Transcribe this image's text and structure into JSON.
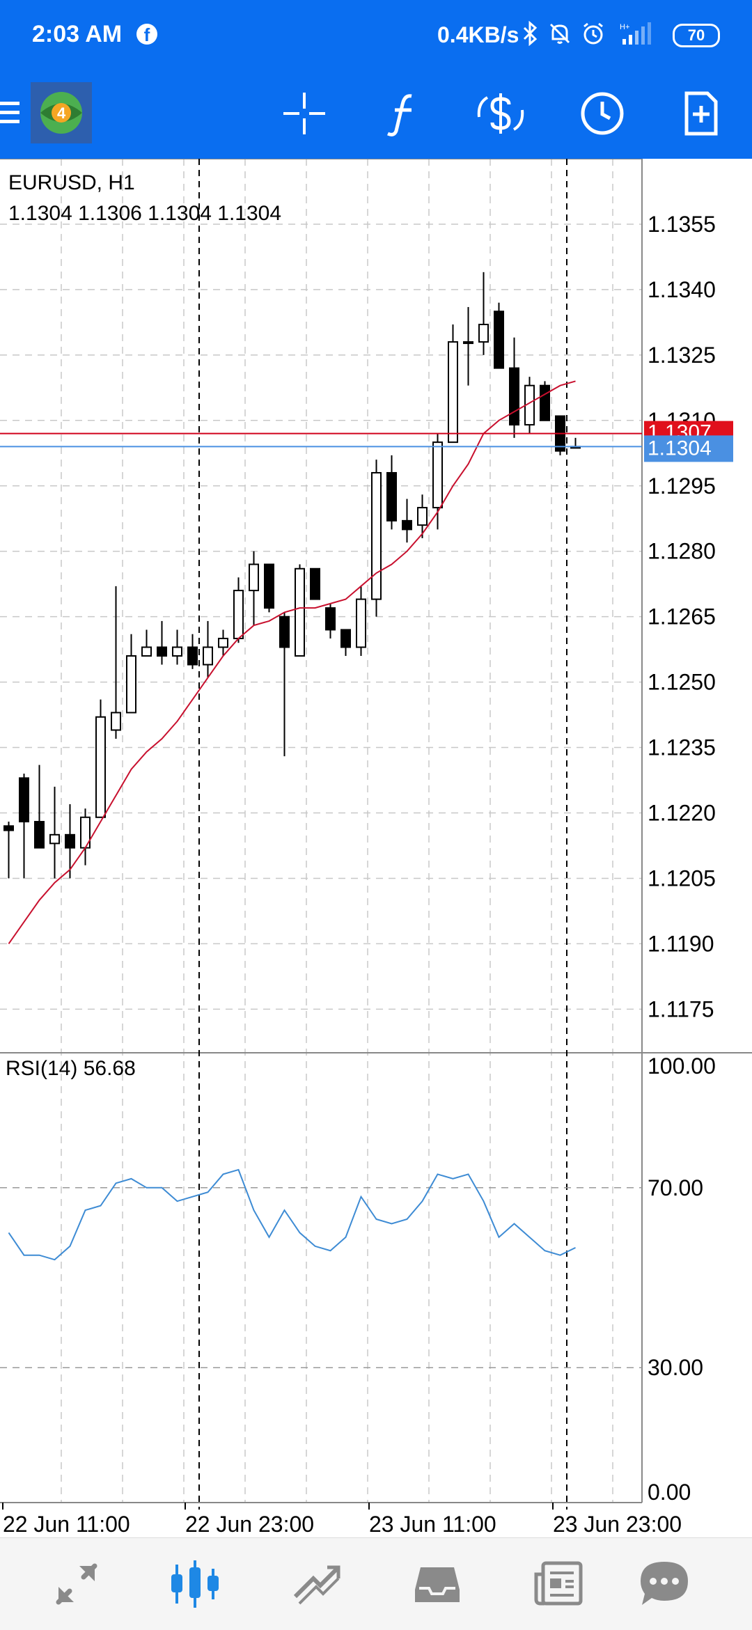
{
  "status_bar": {
    "time": "2:03 AM",
    "facebook_glyph": "f",
    "network_speed": "0.4KB/s",
    "battery": "70",
    "icons": [
      "facebook-icon",
      "bluetooth-icon",
      "muted-bell-icon",
      "alarm-icon",
      "signal-icon",
      "battery-icon"
    ]
  },
  "toolbar": {
    "icons": [
      "menu-icon",
      "mt4-logo",
      "crosshair-icon",
      "indicators-icon",
      "trade-icon",
      "timeframe-icon",
      "templates-icon"
    ],
    "colors": {
      "background": "#0a6ef0",
      "icon": "#ffffff"
    }
  },
  "chart": {
    "symbol_label": "EURUSD, H1",
    "ohlc_label": "1.1304 1.1306 1.1304 1.1304",
    "price_labels": [
      "1.1355",
      "1.1340",
      "1.1325",
      "1.1310",
      "1.1295",
      "1.1280",
      "1.1265",
      "1.1250",
      "1.1235",
      "1.1220",
      "1.1205",
      "1.1190",
      "1.1175"
    ],
    "bid_label": "1.1304",
    "ask_label": "1.1307",
    "bid_value": 1.1304,
    "ask_value": 1.1307,
    "time_labels": [
      "22 Jun 11:00",
      "22 Jun 23:00",
      "23 Jun 11:00",
      "23 Jun 23:00"
    ],
    "colors": {
      "ask_line": "#d0021b",
      "bid_line": "#4a90e2",
      "ma_line": "#c8102e",
      "rsi_line": "#3d8bd4",
      "grid": "#c8c8c8"
    }
  },
  "rsi": {
    "label": "RSI(14) 56.68",
    "levels": [
      "100.00",
      "70.00",
      "30.00",
      "0.00"
    ]
  },
  "bottom_nav": {
    "items": [
      "quotes-icon",
      "chart-icon",
      "trade-icon",
      "history-icon",
      "news-icon",
      "chat-icon"
    ],
    "active": "chart-icon"
  },
  "chart_data": {
    "type": "candlestick",
    "ylim": [
      1.1165,
      1.137
    ],
    "candles": [
      {
        "o": 1.1217,
        "h": 1.1218,
        "l": 1.1205,
        "c": 1.1216
      },
      {
        "o": 1.1228,
        "h": 1.1229,
        "l": 1.1205,
        "c": 1.1218
      },
      {
        "o": 1.1218,
        "h": 1.1231,
        "l": 1.1214,
        "c": 1.1212
      },
      {
        "o": 1.1213,
        "h": 1.1226,
        "l": 1.1205,
        "c": 1.1215
      },
      {
        "o": 1.1215,
        "h": 1.1222,
        "l": 1.1205,
        "c": 1.1212
      },
      {
        "o": 1.1212,
        "h": 1.1221,
        "l": 1.1208,
        "c": 1.1219
      },
      {
        "o": 1.1219,
        "h": 1.1246,
        "l": 1.1219,
        "c": 1.1242
      },
      {
        "o": 1.1239,
        "h": 1.1272,
        "l": 1.1237,
        "c": 1.1243
      },
      {
        "o": 1.1243,
        "h": 1.1261,
        "l": 1.1243,
        "c": 1.1256
      },
      {
        "o": 1.1256,
        "h": 1.1262,
        "l": 1.1256,
        "c": 1.1258
      },
      {
        "o": 1.1258,
        "h": 1.1264,
        "l": 1.1254,
        "c": 1.1256
      },
      {
        "o": 1.1256,
        "h": 1.1262,
        "l": 1.1254,
        "c": 1.1258
      },
      {
        "o": 1.1258,
        "h": 1.1261,
        "l": 1.1253,
        "c": 1.1254
      },
      {
        "o": 1.1254,
        "h": 1.1264,
        "l": 1.1251,
        "c": 1.1258
      },
      {
        "o": 1.1258,
        "h": 1.1262,
        "l": 1.1256,
        "c": 1.126
      },
      {
        "o": 1.126,
        "h": 1.1274,
        "l": 1.1259,
        "c": 1.1271
      },
      {
        "o": 1.1271,
        "h": 1.128,
        "l": 1.1263,
        "c": 1.1277
      },
      {
        "o": 1.1277,
        "h": 1.1277,
        "l": 1.1266,
        "c": 1.1267
      },
      {
        "o": 1.1265,
        "h": 1.1266,
        "l": 1.1233,
        "c": 1.1258
      },
      {
        "o": 1.1256,
        "h": 1.1277,
        "l": 1.1256,
        "c": 1.1276
      },
      {
        "o": 1.1276,
        "h": 1.1276,
        "l": 1.1269,
        "c": 1.1269
      },
      {
        "o": 1.1267,
        "h": 1.1268,
        "l": 1.126,
        "c": 1.1262
      },
      {
        "o": 1.1262,
        "h": 1.1262,
        "l": 1.1256,
        "c": 1.1258
      },
      {
        "o": 1.1258,
        "h": 1.1272,
        "l": 1.1256,
        "c": 1.1269
      },
      {
        "o": 1.1269,
        "h": 1.1301,
        "l": 1.1265,
        "c": 1.1298
      },
      {
        "o": 1.1298,
        "h": 1.1302,
        "l": 1.1285,
        "c": 1.1287
      },
      {
        "o": 1.1287,
        "h": 1.1292,
        "l": 1.1282,
        "c": 1.1285
      },
      {
        "o": 1.1286,
        "h": 1.1293,
        "l": 1.1283,
        "c": 1.129
      },
      {
        "o": 1.129,
        "h": 1.1307,
        "l": 1.1285,
        "c": 1.1305
      },
      {
        "o": 1.1305,
        "h": 1.1332,
        "l": 1.1305,
        "c": 1.1328
      },
      {
        "o": 1.1328,
        "h": 1.1336,
        "l": 1.1318,
        "c": 1.1328
      },
      {
        "o": 1.1328,
        "h": 1.1344,
        "l": 1.1325,
        "c": 1.1332
      },
      {
        "o": 1.1335,
        "h": 1.1337,
        "l": 1.1322,
        "c": 1.1322
      },
      {
        "o": 1.1322,
        "h": 1.1329,
        "l": 1.1306,
        "c": 1.1309
      },
      {
        "o": 1.1309,
        "h": 1.132,
        "l": 1.1307,
        "c": 1.1318
      },
      {
        "o": 1.1318,
        "h": 1.1319,
        "l": 1.131,
        "c": 1.131
      },
      {
        "o": 1.1311,
        "h": 1.1311,
        "l": 1.1302,
        "c": 1.1303
      },
      {
        "o": 1.1304,
        "h": 1.1306,
        "l": 1.1304,
        "c": 1.1304
      }
    ],
    "ma": [
      1.119,
      1.1195,
      1.12,
      1.1204,
      1.1207,
      1.1212,
      1.1218,
      1.1224,
      1.123,
      1.1234,
      1.1237,
      1.1241,
      1.1246,
      1.1251,
      1.1256,
      1.126,
      1.1263,
      1.1264,
      1.1266,
      1.1267,
      1.1267,
      1.1268,
      1.1269,
      1.1272,
      1.1275,
      1.1277,
      1.128,
      1.1284,
      1.1289,
      1.1295,
      1.13,
      1.1307,
      1.131,
      1.1312,
      1.1314,
      1.1316,
      1.1318,
      1.1319
    ],
    "rsi_values": [
      60,
      55,
      55,
      54,
      57,
      65,
      66,
      71,
      72,
      70,
      70,
      67,
      68,
      69,
      73,
      74,
      65,
      59,
      65,
      60,
      57,
      56,
      59,
      68,
      63,
      62,
      63,
      67,
      73,
      72,
      73,
      67,
      59,
      62,
      59,
      56,
      55,
      56.68
    ],
    "rsi_ylim": [
      0,
      100
    ],
    "rsi_levels": [
      70,
      30
    ]
  }
}
